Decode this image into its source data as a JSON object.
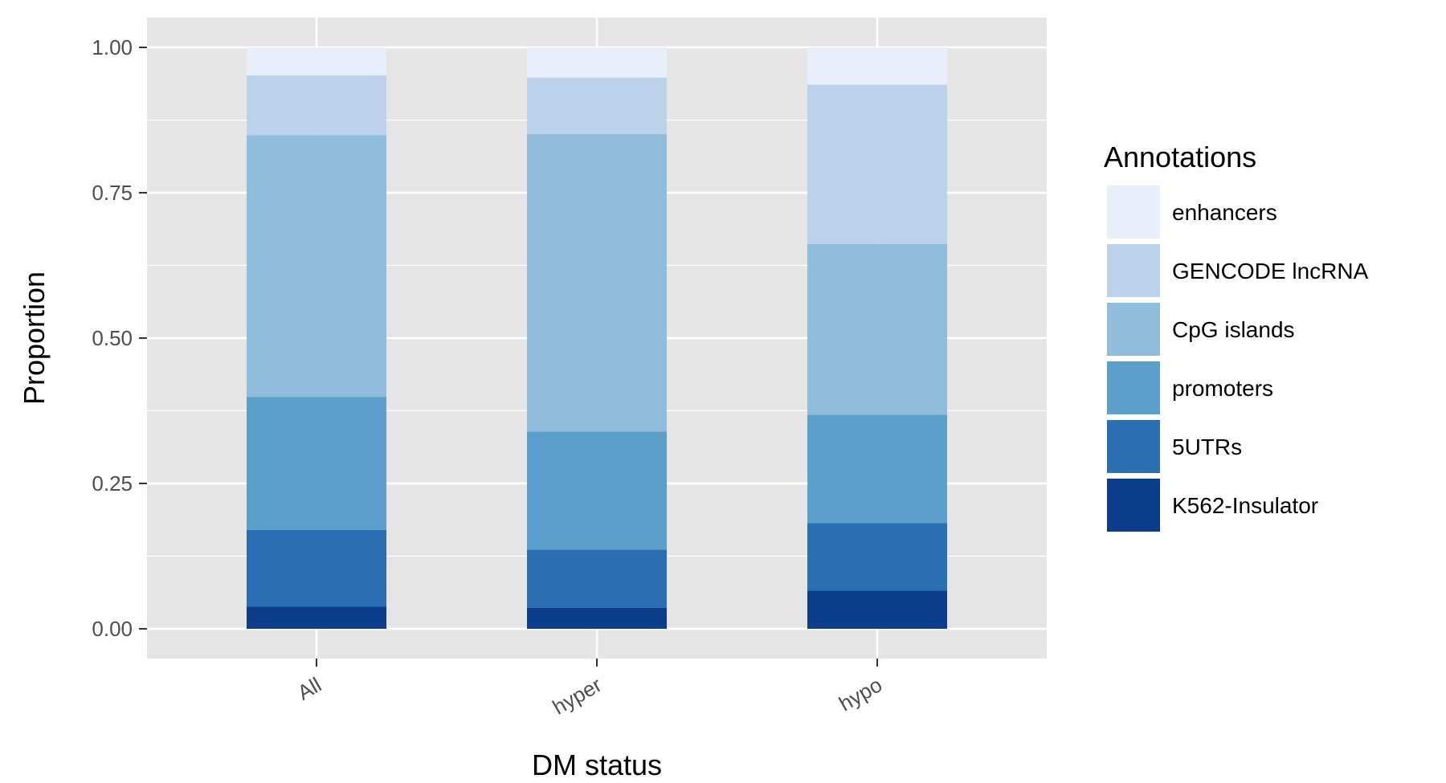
{
  "chart_data": {
    "type": "bar",
    "stacked": true,
    "title": "",
    "xlabel": "DM status",
    "ylabel": "Proportion",
    "ylim": [
      0,
      1
    ],
    "y_ticks": [
      "0.00",
      "0.25",
      "0.50",
      "0.75",
      "1.00"
    ],
    "y_tick_values": [
      0,
      0.25,
      0.5,
      0.75,
      1.0
    ],
    "categories": [
      "All",
      "hyper",
      "hypo"
    ],
    "grid": true,
    "legend": {
      "title": "Annotations",
      "position": "right"
    },
    "series": [
      {
        "name": "K562-Insulator",
        "color": "#0c3d8a",
        "values": [
          0.038,
          0.036,
          0.066
        ]
      },
      {
        "name": "5UTRs",
        "color": "#2a6fb1",
        "values": [
          0.132,
          0.1,
          0.116
        ]
      },
      {
        "name": "promoters",
        "color": "#5b9fcb",
        "values": [
          0.229,
          0.203,
          0.186
        ]
      },
      {
        "name": "CpG islands",
        "color": "#8fbddb",
        "values": [
          0.45,
          0.512,
          0.294
        ]
      },
      {
        "name": "GENCODE lncRNA",
        "color": "#bcd2eb",
        "values": [
          0.103,
          0.097,
          0.274
        ]
      },
      {
        "name": "enhancers",
        "color": "#e8effb",
        "values": [
          0.048,
          0.052,
          0.064
        ]
      }
    ]
  }
}
